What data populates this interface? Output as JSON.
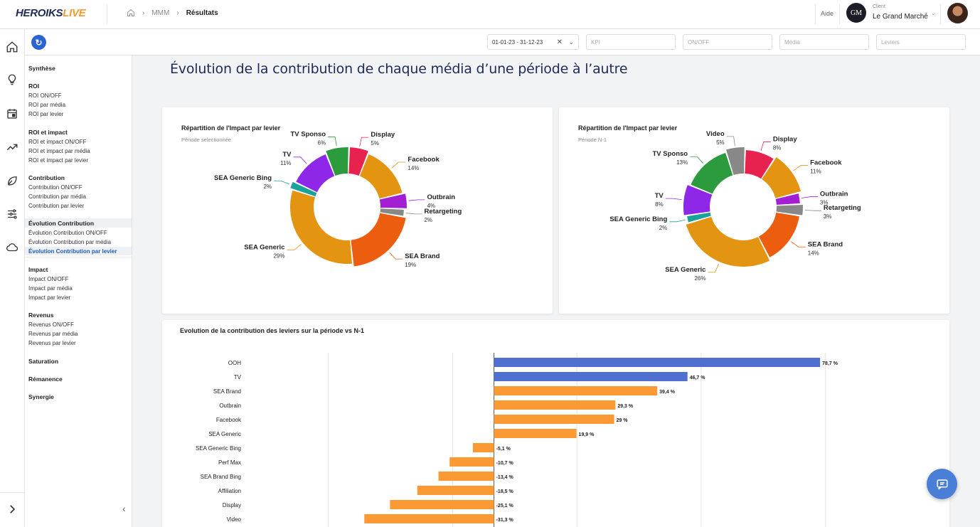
{
  "header": {
    "logo_part1": "HEROIKS",
    "logo_part2": "LIVE",
    "breadcrumb": [
      "MMM",
      "Résultats"
    ],
    "help": "Aide",
    "client_label": "Client",
    "client_name": "Le Grand Marché",
    "client_logo": "GM"
  },
  "filters": {
    "date": "01-01-23 - 31-12-23",
    "kpi": "KPI",
    "onoff": "ON/OFF",
    "media": "Média",
    "leviers": "Leviers"
  },
  "menu": {
    "synthese": "Synthèse",
    "roi": {
      "title": "ROI",
      "items": [
        "ROI ON/OFF",
        "ROI par média",
        "ROI par levier"
      ]
    },
    "roi_impact": {
      "title": "ROI et impact",
      "items": [
        "ROI et impact ON/OFF",
        "ROI et impact par média",
        "ROI et impact par levier"
      ]
    },
    "contribution": {
      "title": "Contribution",
      "items": [
        "Contribution ON/OFF",
        "Contribution par média",
        "Contribution par levier"
      ]
    },
    "evolution": {
      "title": "Évolution Contribution",
      "items": [
        "Évolution Contribution ON/OFF",
        "Évolution Contribution par média",
        "Évolution Contribution par levier"
      ]
    },
    "impact": {
      "title": "Impact",
      "items": [
        "Impact ON/OFF",
        "Impact par média",
        "Impact par levier"
      ]
    },
    "revenus": {
      "title": "Revenus",
      "items": [
        "Revenus ON/OFF",
        "Revenus par média",
        "Revenus par levier"
      ]
    },
    "saturation": "Saturation",
    "remanence": "Rémanence",
    "synergie": "Synergie"
  },
  "page_title": "Évolution de la contribution de chaque média d’une période à l’autre",
  "chart_data": [
    {
      "type": "pie",
      "title": "Répartition de l'Impact par levier",
      "subtitle": "Période selectionnée",
      "categories": [
        "Display",
        "Facebook",
        "Outbrain",
        "Retargeting",
        "SEA Brand",
        "SEA Generic",
        "SEA Generic Bing",
        "TV",
        "TV Sponso"
      ],
      "values": [
        5,
        14,
        4,
        2,
        19,
        29,
        2,
        11,
        6
      ],
      "colors": [
        "#e8224f",
        "#e39411",
        "#a21fd4",
        "#888888",
        "#ed5d10",
        "#e39411",
        "#1aa39a",
        "#8f27e8",
        "#2b9b3d"
      ],
      "donut": true
    },
    {
      "type": "pie",
      "title": "Répartition de l'Impact par levier",
      "subtitle": "Période N-1",
      "categories": [
        "Video",
        "Display",
        "Facebook",
        "Outbrain",
        "Retargeting",
        "SEA Brand",
        "SEA Generic",
        "SEA Generic Bing",
        "TV",
        "TV Sponso"
      ],
      "values": [
        5,
        8,
        11,
        3,
        3,
        14,
        26,
        2,
        8,
        13
      ],
      "colors": [
        "#888888",
        "#e8224f",
        "#e39411",
        "#a21fd4",
        "#888888",
        "#ed5d10",
        "#e39411",
        "#1aa39a",
        "#8f27e8",
        "#2b9b3d"
      ],
      "donut": true
    },
    {
      "type": "bar",
      "orientation": "horizontal",
      "title": "Evolution de la contribution des leviers sur la période vs N-1",
      "categories": [
        "OOH",
        "TV",
        "SEA Brand",
        "Outbrain",
        "Facebook",
        "SEA Generic",
        "SEA Generic Bing",
        "Perf Max",
        "SEA Brand Bing",
        "Affiliation",
        "Display",
        "Video"
      ],
      "values": [
        78.7,
        46.7,
        39.4,
        29.3,
        29,
        19.9,
        -5.1,
        -10.7,
        -13.4,
        -18.5,
        -25.1,
        -31.3
      ],
      "labels": [
        "78,7 %",
        "46,7 %",
        "39,4 %",
        "29,3 %",
        "29 %",
        "19,9 %",
        "-5,1 %",
        "-10,7 %",
        "-13,4 %",
        "-18,5 %",
        "-25,1 %",
        "-31,3 %"
      ],
      "bar_colors": [
        "#4f6fd1",
        "#4f6fd1",
        "#fb9935",
        "#fb9935",
        "#fb9935",
        "#fb9935",
        "#fb9935",
        "#fb9935",
        "#fb9935",
        "#fb9935",
        "#fb9935",
        "#fb9935"
      ],
      "xlim": [
        -60,
        90
      ],
      "grid": true
    }
  ]
}
